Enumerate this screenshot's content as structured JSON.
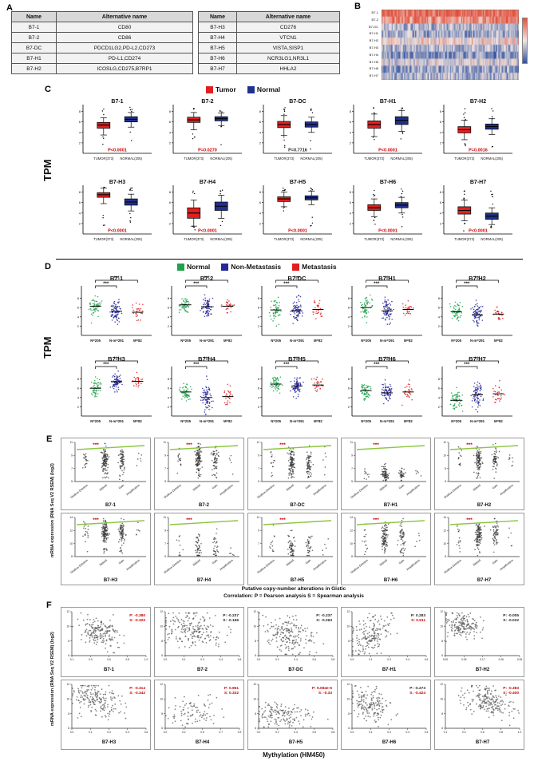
{
  "panel_labels": [
    "A",
    "B",
    "C",
    "D",
    "E",
    "F"
  ],
  "chart_data": [
    {
      "panel": "A",
      "type": "table",
      "tables": [
        {
          "headers": [
            "Name",
            "Alternative name"
          ],
          "rows": [
            [
              "B7-1",
              "CD80"
            ],
            [
              "B7-2",
              "CD86"
            ],
            [
              "B7-DC",
              "PDCD1LG2,PD-L2,CD273"
            ],
            [
              "B7-H1",
              "PD-L1,CD274"
            ],
            [
              "B7-H2",
              "ICOSLG,CD275,B7RP1"
            ]
          ]
        },
        {
          "headers": [
            "Name",
            "Alternative name"
          ],
          "rows": [
            [
              "B7-H3",
              "CD276"
            ],
            [
              "B7-H4",
              "VTCN1"
            ],
            [
              "B7-H5",
              "VISTA,SISP1"
            ],
            [
              "B7-H6",
              "NCR3LG1,NR3L1"
            ],
            [
              "B7-H7",
              "HHLA2"
            ]
          ]
        }
      ]
    },
    {
      "panel": "B",
      "type": "heatmap",
      "row_labels": [
        "B7-1",
        "B7-2",
        "B7-DC",
        "B7-H1",
        "B7-H2",
        "B7-H3",
        "B7-H4",
        "B7-H5",
        "B7-H6",
        "B7-H7"
      ],
      "row_levels": [
        0.95,
        0.8,
        0.35,
        0.28,
        0.55,
        0.32,
        0.2,
        0.45,
        0.27,
        0.33
      ],
      "n_cols": 160,
      "color_high": "#e0503c",
      "color_mid": "#f0e6e2",
      "color_low": "#30509e"
    },
    {
      "panel": "C",
      "type": "box",
      "y_axis_label": "TPM",
      "legend": [
        {
          "label": "Tumor",
          "color": "#e02020"
        },
        {
          "label": "Normal",
          "color": "#20308f"
        }
      ],
      "x_tick_labels": [
        "TUMOR(373)",
        "NORMAL(205)"
      ],
      "ylim": [
        0,
        9
      ],
      "yticks": [
        2,
        4,
        6,
        8
      ],
      "plots": [
        {
          "title": "B7-1",
          "p": "P<0.0001",
          "p_red": true,
          "tumor": [
            3.5,
            4.8,
            5.4,
            5.9,
            6.8
          ],
          "normal": [
            5.0,
            6.0,
            6.5,
            7.0,
            7.8
          ]
        },
        {
          "title": "B7-2",
          "p": "P=0.0270",
          "p_red": true,
          "tumor": [
            4.5,
            5.9,
            6.4,
            6.9,
            7.8
          ],
          "normal": [
            5.3,
            6.2,
            6.6,
            7.0,
            7.7
          ]
        },
        {
          "title": "B7-DC",
          "p": "P=0.7716",
          "p_red": false,
          "tumor": [
            3.4,
            4.9,
            5.5,
            6.1,
            7.2
          ],
          "normal": [
            4.0,
            5.0,
            5.5,
            6.0,
            6.9
          ]
        },
        {
          "title": "B7-H1",
          "p": "P<0.0001",
          "p_red": true,
          "tumor": [
            3.2,
            4.8,
            5.5,
            6.2,
            7.5
          ],
          "normal": [
            4.2,
            5.5,
            6.3,
            7.0,
            8.2
          ]
        },
        {
          "title": "B7-H2",
          "p": "P=0.0016",
          "p_red": true,
          "tumor": [
            2.6,
            3.9,
            4.5,
            5.1,
            6.3
          ],
          "normal": [
            3.6,
            4.6,
            5.1,
            5.6,
            6.6
          ]
        },
        {
          "title": "B7-H3",
          "p": "P<0.0001",
          "p_red": true,
          "tumor": [
            5.8,
            7.0,
            7.5,
            7.9,
            8.8
          ],
          "normal": [
            4.4,
            5.5,
            6.1,
            6.7,
            7.6
          ]
        },
        {
          "title": "B7-H4",
          "p": "P<0.0001",
          "p_red": true,
          "tumor": [
            1.5,
            3.0,
            4.0,
            5.0,
            6.5
          ],
          "normal": [
            3.0,
            4.5,
            5.3,
            6.1,
            7.4
          ]
        },
        {
          "title": "B7-H5",
          "p": "P<0.0001",
          "p_red": true,
          "tumor": [
            5.2,
            6.2,
            6.7,
            7.1,
            8.0
          ],
          "normal": [
            5.6,
            6.5,
            6.9,
            7.3,
            8.2
          ]
        },
        {
          "title": "B7-H6",
          "p": "P<0.0001",
          "p_red": true,
          "tumor": [
            3.3,
            4.5,
            5.0,
            5.6,
            6.7
          ],
          "normal": [
            4.0,
            5.0,
            5.5,
            6.0,
            7.0
          ]
        },
        {
          "title": "B7-H7",
          "p": "P<0.0001",
          "p_red": true,
          "tumor": [
            2.5,
            3.8,
            4.5,
            5.2,
            6.5
          ],
          "normal": [
            1.8,
            2.8,
            3.4,
            4.0,
            5.0
          ]
        }
      ]
    },
    {
      "panel": "D",
      "type": "strip",
      "y_axis_label": "TPM",
      "legend": [
        {
          "label": "Normal",
          "color": "#1fa24a"
        },
        {
          "label": "Non-Metastasis",
          "color": "#27279a"
        },
        {
          "label": "Metastasis",
          "color": "#e02020"
        }
      ],
      "group_labels": [
        "N=205",
        "N-m=291",
        "M=82"
      ],
      "sig": "***",
      "ylim": [
        0,
        10
      ],
      "yticks": [
        2,
        4,
        6,
        8
      ],
      "plots": [
        {
          "title": "B7-1",
          "centers": [
            6.3,
            5.2,
            5.0
          ],
          "spread": [
            1.1,
            1.2,
            0.9
          ]
        },
        {
          "title": "B7-2",
          "centers": [
            6.6,
            6.2,
            6.3
          ],
          "spread": [
            0.9,
            1.0,
            0.8
          ]
        },
        {
          "title": "B7-DC",
          "centers": [
            5.5,
            5.3,
            5.6
          ],
          "spread": [
            1.2,
            1.3,
            1.0
          ]
        },
        {
          "title": "B7-H1",
          "centers": [
            6.0,
            5.3,
            5.6
          ],
          "spread": [
            1.1,
            1.3,
            1.0
          ]
        },
        {
          "title": "B7-H2",
          "centers": [
            5.1,
            4.4,
            4.6
          ],
          "spread": [
            1.0,
            1.2,
            0.9
          ]
        },
        {
          "title": "B7-H3",
          "centers": [
            6.0,
            7.4,
            7.5
          ],
          "spread": [
            1.0,
            0.9,
            0.8
          ]
        },
        {
          "title": "B7-H4",
          "centers": [
            5.2,
            4.0,
            4.2
          ],
          "spread": [
            1.2,
            1.5,
            1.2
          ]
        },
        {
          "title": "B7-H5",
          "centers": [
            6.9,
            6.5,
            6.7
          ],
          "spread": [
            0.8,
            1.0,
            0.8
          ]
        },
        {
          "title": "B7-H6",
          "centers": [
            5.5,
            5.0,
            5.2
          ],
          "spread": [
            1.0,
            1.1,
            0.9
          ]
        },
        {
          "title": "B7-H7",
          "centers": [
            3.4,
            4.6,
            4.8
          ],
          "spread": [
            1.1,
            1.3,
            1.0
          ]
        }
      ]
    },
    {
      "panel": "E",
      "type": "scatter",
      "subtype": "copy-number",
      "y_axis_label": "mRNA expression (RNA Seq V2 RSEM) (log2)",
      "x_categories": [
        "Shallow Deletion",
        "Diploid",
        "Gain",
        "Amplification"
      ],
      "sig": "***",
      "sig_color": "#cc0000",
      "dot_color": "#3a3a3a",
      "line_color": "#8dc63f",
      "caption1": "Putative copy-number alterations in Gistic",
      "caption2": "Correlation:  P = Pearson analysis  S = Spearman analysis",
      "plots": [
        {
          "title": "B7-1",
          "ylim": [
            5,
            11
          ],
          "counts": [
            20,
            120,
            70,
            6
          ],
          "ymid": 0.45,
          "yspread": 0.16
        },
        {
          "title": "B7-2",
          "ylim": [
            5,
            11
          ],
          "counts": [
            18,
            130,
            60,
            5
          ],
          "ymid": 0.42,
          "yspread": 0.17
        },
        {
          "title": "B7-DC",
          "ylim": [
            5,
            11
          ],
          "counts": [
            15,
            120,
            70,
            6
          ],
          "ymid": 0.5,
          "yspread": 0.18
        },
        {
          "title": "B7-H1",
          "ylim": [
            5,
            11
          ],
          "counts": [
            10,
            80,
            40,
            5
          ],
          "ymid": 0.8,
          "yspread": 0.1
        },
        {
          "title": "B7-H2",
          "ylim": [
            6,
            12
          ],
          "counts": [
            15,
            110,
            60,
            8
          ],
          "ymid": 0.45,
          "yspread": 0.15
        },
        {
          "title": "B7-H3",
          "ylim": [
            8,
            14
          ],
          "counts": [
            20,
            130,
            80,
            6
          ],
          "ymid": 0.35,
          "yspread": 0.14
        },
        {
          "title": "B7-H4",
          "ylim": [
            5,
            11
          ],
          "counts": [
            10,
            50,
            30,
            5
          ],
          "ymid": 0.75,
          "yspread": 0.2
        },
        {
          "title": "B7-H5",
          "ylim": [
            5,
            11
          ],
          "counts": [
            12,
            60,
            35,
            5
          ],
          "ymid": 0.75,
          "yspread": 0.18
        },
        {
          "title": "B7-H6",
          "ylim": [
            8,
            14
          ],
          "counts": [
            15,
            100,
            60,
            5
          ],
          "ymid": 0.5,
          "yspread": 0.2
        },
        {
          "title": "B7-H7",
          "ylim": [
            8,
            14
          ],
          "counts": [
            15,
            110,
            60,
            5
          ],
          "ymid": 0.45,
          "yspread": 0.18
        }
      ]
    },
    {
      "panel": "F",
      "type": "scatter",
      "subtype": "methylation",
      "y_axis_label": "mRNA expression (RNA Seq V2 RSEM) (log2)",
      "x_axis_label": "Mythylation (HM450)",
      "dot_color": "#555555",
      "ylim": [
        6,
        12
      ],
      "yticks": [
        6,
        8,
        10,
        12
      ],
      "plots": [
        {
          "title": "B7-1",
          "p": "P: -0.380",
          "s": "S: -0.320",
          "p_red": true,
          "s_red": true,
          "n": 180,
          "cx": 0.45,
          "cy": 0.45,
          "sx": 0.13,
          "sy": 0.17,
          "rho": -0.38,
          "xlim": [
            0.1,
            1.0
          ]
        },
        {
          "title": "B7-2",
          "p": "P: -0.237",
          "s": "S: -0.166",
          "p_red": false,
          "s_red": false,
          "n": 200,
          "cx": 0.22,
          "cy": 0.4,
          "sx": 0.11,
          "sy": 0.2,
          "rho": -0.2,
          "xlim": [
            0.0,
            0.6
          ]
        },
        {
          "title": "B7-DC",
          "p": "P: -0.237",
          "s": "S: -0.263",
          "p_red": false,
          "s_red": false,
          "n": 190,
          "cx": 0.3,
          "cy": 0.5,
          "sx": 0.14,
          "sy": 0.2,
          "rho": -0.26,
          "xlim": [
            0.0,
            0.8
          ]
        },
        {
          "title": "B7-H1",
          "p": "P: 0.283",
          "s": "S: 0.511",
          "p_red": false,
          "s_red": true,
          "n": 170,
          "cx": 0.15,
          "cy": 0.55,
          "sx": 0.08,
          "sy": 0.22,
          "rho": 0.35,
          "xlim": [
            0.0,
            0.6
          ]
        },
        {
          "title": "B7-H2",
          "p": "P: -0.005",
          "s": "S: -0.022",
          "p_red": false,
          "s_red": false,
          "n": 170,
          "cx": 0.08,
          "cy": 0.3,
          "sx": 0.04,
          "sy": 0.15,
          "rho": 0.0,
          "xlim": [
            0.0,
            0.35
          ]
        },
        {
          "title": "B7-H3",
          "p": "P: -0.314",
          "s": "S: -0.342",
          "p_red": true,
          "s_red": true,
          "n": 190,
          "cx": 0.2,
          "cy": 0.35,
          "sx": 0.1,
          "sy": 0.2,
          "rho": -0.33,
          "xlim": [
            0.0,
            0.6
          ]
        },
        {
          "title": "B7-H4",
          "p": "P: 0.961",
          "s": "S: 0.332",
          "p_red": true,
          "s_red": true,
          "n": 90,
          "cx": 0.3,
          "cy": 0.6,
          "sx": 0.17,
          "sy": 0.22,
          "rho": 0.1,
          "xlim": [
            0.0,
            0.9
          ]
        },
        {
          "title": "B7-H5",
          "p": "P: 9.084e-5",
          "s": "S: -0.33",
          "p_red": true,
          "s_red": true,
          "n": 150,
          "cx": 0.25,
          "cy": 0.7,
          "sx": 0.15,
          "sy": 0.15,
          "rho": -0.1,
          "xlim": [
            0.0,
            0.8
          ]
        },
        {
          "title": "B7-H6",
          "p": "P: -0.273",
          "s": "S: -0.424",
          "p_red": false,
          "s_red": true,
          "n": 160,
          "cx": 0.12,
          "cy": 0.45,
          "sx": 0.07,
          "sy": 0.2,
          "rho": -0.3,
          "xlim": [
            0.0,
            0.5
          ]
        },
        {
          "title": "B7-H7",
          "p": "P: -0.383",
          "s": "S: -0.400",
          "p_red": true,
          "s_red": true,
          "n": 200,
          "cx": 0.62,
          "cy": 0.4,
          "sx": 0.15,
          "sy": 0.18,
          "rho": -0.4,
          "xlim": [
            0.1,
            1.0
          ]
        }
      ]
    }
  ]
}
